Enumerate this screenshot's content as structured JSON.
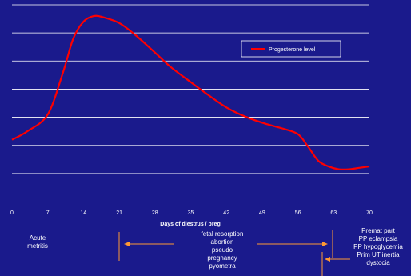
{
  "chart_data": {
    "type": "line",
    "xlabel": "Days of diestrus / preg",
    "ylabel": "",
    "xlim": [
      0,
      70
    ],
    "x_ticks": [
      "0",
      "7",
      "14",
      "21",
      "28",
      "35",
      "42",
      "49",
      "56",
      "63",
      "70"
    ],
    "ylim": [
      0,
      7
    ],
    "grid": true,
    "legend": "top-right",
    "series": [
      {
        "name": "Progesterone level",
        "color": "#ff0000",
        "x": [
          0,
          3,
          7,
          10,
          12,
          14,
          16,
          18,
          21,
          24,
          28,
          31,
          35,
          38,
          42,
          46,
          50,
          53,
          56,
          58,
          60,
          62,
          64,
          66,
          68,
          70
        ],
        "y": [
          2.2,
          2.5,
          3.1,
          4.6,
          5.8,
          6.4,
          6.6,
          6.55,
          6.35,
          5.95,
          5.3,
          4.8,
          4.25,
          3.85,
          3.35,
          3.0,
          2.75,
          2.6,
          2.4,
          1.95,
          1.45,
          1.25,
          1.15,
          1.15,
          1.2,
          1.25
        ]
      }
    ]
  },
  "annotations": {
    "acute": [
      "Acute",
      "metritis"
    ],
    "middle": [
      "fetal resorption",
      "abortion",
      "pseudo",
      "pregnancy",
      "pyometra"
    ],
    "right": [
      "Premat part",
      "PP eclampsia",
      "PP hypoglycemia",
      "Prim UT inertia",
      "dystocia"
    ]
  },
  "colors": {
    "background": "#1a1a8c",
    "line": "#ff0000",
    "arrow": "#ff9933",
    "grid": "#ffffff"
  }
}
